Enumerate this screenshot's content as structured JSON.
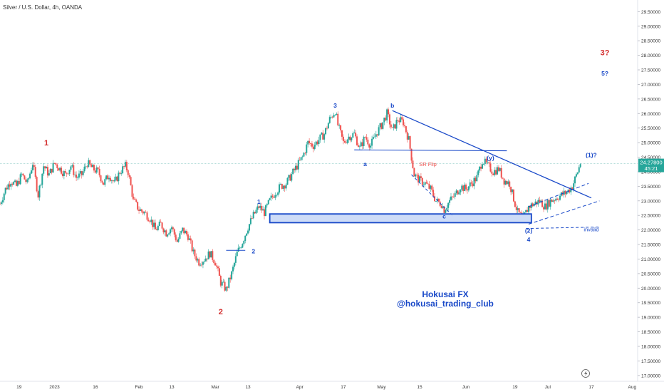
{
  "chart_data": {
    "type": "candlestick",
    "title": "Silver / U.S. Dollar, 4h, OANDA",
    "last_price": "24.27800",
    "countdown": "45:21",
    "y_ticks": [
      "17.00000",
      "17.50000",
      "18.00000",
      "18.50000",
      "19.00000",
      "19.50000",
      "20.00000",
      "20.50000",
      "21.00000",
      "21.50000",
      "22.00000",
      "22.50000",
      "23.00000",
      "23.50000",
      "24.00000",
      "24.50000",
      "25.00000",
      "25.50000",
      "26.00000",
      "26.50000",
      "27.00000",
      "27.50000",
      "28.00000",
      "28.50000",
      "29.00000",
      "29.50000"
    ],
    "ylim": [
      16.8,
      29.9
    ],
    "x_ticks": [
      {
        "label": "19",
        "day": -13
      },
      {
        "label": "2023",
        "day": 0
      },
      {
        "label": "16",
        "day": 15
      },
      {
        "label": "Feb",
        "day": 31
      },
      {
        "label": "13",
        "day": 43
      },
      {
        "label": "Mar",
        "day": 59
      },
      {
        "label": "13",
        "day": 71
      },
      {
        "label": "Apr",
        "day": 90
      },
      {
        "label": "17",
        "day": 106
      },
      {
        "label": "May",
        "day": 120
      },
      {
        "label": "15",
        "day": 134
      },
      {
        "label": "Jun",
        "day": 151
      },
      {
        "label": "19",
        "day": 169
      },
      {
        "label": "Jul",
        "day": 181
      },
      {
        "label": "17",
        "day": 197
      },
      {
        "label": "Aug",
        "day": 212
      }
    ],
    "xlim_days": [
      -20,
      214
    ],
    "colors": {
      "up": "#26a69a",
      "down": "#ef5350",
      "trendline": "#1848c8",
      "label_red": "#d32f2f",
      "label_blue": "#1848c8",
      "price_line": "#9fd3cf",
      "box_fill": "#c6d6f6",
      "price_tag": "#26a69a"
    },
    "price_path": [
      [
        -20,
        22.9
      ],
      [
        -18,
        23.4
      ],
      [
        -16,
        23.7
      ],
      [
        -14,
        23.5
      ],
      [
        -12,
        23.9
      ],
      [
        -10,
        23.6
      ],
      [
        -8,
        24.3
      ],
      [
        -6,
        23.2
      ],
      [
        -4,
        24.2
      ],
      [
        -2,
        23.9
      ],
      [
        0,
        24.3
      ],
      [
        2,
        24.1
      ],
      [
        4,
        23.9
      ],
      [
        6,
        24.2
      ],
      [
        8,
        23.8
      ],
      [
        10,
        23.9
      ],
      [
        12,
        24.3
      ],
      [
        14,
        24.1
      ],
      [
        16,
        24.0
      ],
      [
        18,
        23.6
      ],
      [
        20,
        23.9
      ],
      [
        22,
        23.6
      ],
      [
        24,
        24.0
      ],
      [
        26,
        24.2
      ],
      [
        27,
        24.0
      ],
      [
        28,
        23.5
      ],
      [
        29,
        23.0
      ],
      [
        31,
        22.7
      ],
      [
        33,
        22.6
      ],
      [
        35,
        22.4
      ],
      [
        37,
        22.0
      ],
      [
        39,
        22.2
      ],
      [
        41,
        21.9
      ],
      [
        43,
        22.1
      ],
      [
        45,
        21.6
      ],
      [
        47,
        22.0
      ],
      [
        49,
        21.8
      ],
      [
        51,
        21.2
      ],
      [
        53,
        20.9
      ],
      [
        55,
        21.0
      ],
      [
        57,
        21.2
      ],
      [
        59,
        20.9
      ],
      [
        61,
        20.2
      ],
      [
        63,
        19.95
      ],
      [
        65,
        20.5
      ],
      [
        67,
        21.2
      ],
      [
        69,
        21.6
      ],
      [
        71,
        22.1
      ],
      [
        73,
        22.5
      ],
      [
        75,
        22.8
      ],
      [
        77,
        22.6
      ],
      [
        79,
        23.0
      ],
      [
        81,
        23.3
      ],
      [
        83,
        23.5
      ],
      [
        85,
        23.6
      ],
      [
        87,
        23.9
      ],
      [
        89,
        24.2
      ],
      [
        91,
        24.5
      ],
      [
        93,
        25.0
      ],
      [
        95,
        24.9
      ],
      [
        97,
        25.1
      ],
      [
        99,
        25.3
      ],
      [
        101,
        25.8
      ],
      [
        103,
        26.1
      ],
      [
        104,
        25.6
      ],
      [
        106,
        25.0
      ],
      [
        108,
        25.2
      ],
      [
        110,
        25.3
      ],
      [
        112,
        24.8
      ],
      [
        114,
        25.2
      ],
      [
        116,
        24.9
      ],
      [
        118,
        25.3
      ],
      [
        120,
        25.6
      ],
      [
        122,
        26.0
      ],
      [
        124,
        25.4
      ],
      [
        126,
        25.8
      ],
      [
        128,
        25.7
      ],
      [
        130,
        25.1
      ],
      [
        132,
        23.9
      ],
      [
        134,
        23.7
      ],
      [
        136,
        23.6
      ],
      [
        138,
        23.4
      ],
      [
        140,
        23.0
      ],
      [
        142,
        22.9
      ],
      [
        143,
        22.7
      ],
      [
        145,
        23.0
      ],
      [
        147,
        23.2
      ],
      [
        149,
        23.5
      ],
      [
        151,
        23.4
      ],
      [
        153,
        23.6
      ],
      [
        155,
        23.8
      ],
      [
        157,
        24.4
      ],
      [
        159,
        24.2
      ],
      [
        161,
        24.0
      ],
      [
        163,
        24.1
      ],
      [
        165,
        23.7
      ],
      [
        167,
        23.6
      ],
      [
        169,
        22.9
      ],
      [
        170,
        22.6
      ],
      [
        172,
        22.4
      ],
      [
        174,
        22.8
      ],
      [
        176,
        22.9
      ],
      [
        178,
        23.0
      ],
      [
        180,
        22.8
      ],
      [
        182,
        23.0
      ],
      [
        184,
        23.1
      ],
      [
        186,
        23.2
      ],
      [
        188,
        23.3
      ],
      [
        190,
        23.5
      ],
      [
        192,
        24.0
      ],
      [
        193,
        24.3
      ]
    ],
    "annotations": {
      "wave_1_red": {
        "text": "1",
        "day": -3,
        "price": 24.9,
        "color": "red"
      },
      "wave_2_red": {
        "text": "2",
        "day": 61,
        "price": 19.1,
        "color": "red"
      },
      "wave_3_red": {
        "text": "3?",
        "day": 202,
        "price": 28.0,
        "color": "red"
      },
      "wave_5_blue": {
        "text": "5?",
        "day": 202,
        "price": 27.3,
        "color": "blue"
      },
      "wave_1_small": {
        "text": "1",
        "day": 75,
        "price": 22.9,
        "color": "blue"
      },
      "wave_2_small": {
        "text": "2",
        "day": 73,
        "price": 21.2,
        "color": "blue"
      },
      "wave_3_small": {
        "text": "3",
        "day": 103,
        "price": 26.2,
        "color": "blue"
      },
      "wave_a": {
        "text": "a",
        "day": 114,
        "price": 24.2,
        "color": "blue"
      },
      "wave_b": {
        "text": "b",
        "day": 124,
        "price": 26.2,
        "color": "blue"
      },
      "wave_c": {
        "text": "c",
        "day": 143,
        "price": 22.4,
        "color": "blue"
      },
      "wave_y": {
        "text": "(y)",
        "day": 160,
        "price": 24.4,
        "color": "blue"
      },
      "wave_2_paren": {
        "text": "(2)",
        "day": 174,
        "price": 21.9,
        "color": "blue"
      },
      "wave_4": {
        "text": "4",
        "day": 174,
        "price": 21.6,
        "color": "blue"
      },
      "wave_1_paren": {
        "text": "(1)?",
        "day": 197,
        "price": 24.5,
        "color": "blue"
      },
      "sr_flip": {
        "text": "SR Flip",
        "day": 137,
        "price": 24.2,
        "color": "red"
      },
      "invalid": {
        "text": "invalid",
        "day": 197,
        "price": 21.95,
        "color": "blue"
      }
    },
    "watermark": [
      "Hokusai FX",
      "@hokusai_trading_club"
    ],
    "lines": {
      "downtrend": [
        [
          124,
          26.1
        ],
        [
          197,
          23.1
        ]
      ],
      "sr_flip_line": [
        [
          110,
          24.75
        ],
        [
          166,
          24.72
        ]
      ],
      "march_line": [
        [
          63,
          21.3
        ],
        [
          70,
          21.3
        ]
      ],
      "box": {
        "x0": 79,
        "x1": 175,
        "y0": 22.25,
        "y1": 22.55
      },
      "invalid_line": [
        [
          173,
          22.05
        ],
        [
          200,
          22.1
        ]
      ],
      "channel_upper": [
        [
          174,
          22.8
        ],
        [
          196,
          23.6
        ]
      ],
      "channel_lower": [
        [
          174,
          22.2
        ],
        [
          200,
          23.0
        ]
      ],
      "wxy_dash": [
        [
          131,
          23.9
        ],
        [
          146,
          22.5
        ]
      ]
    },
    "grid": false
  }
}
